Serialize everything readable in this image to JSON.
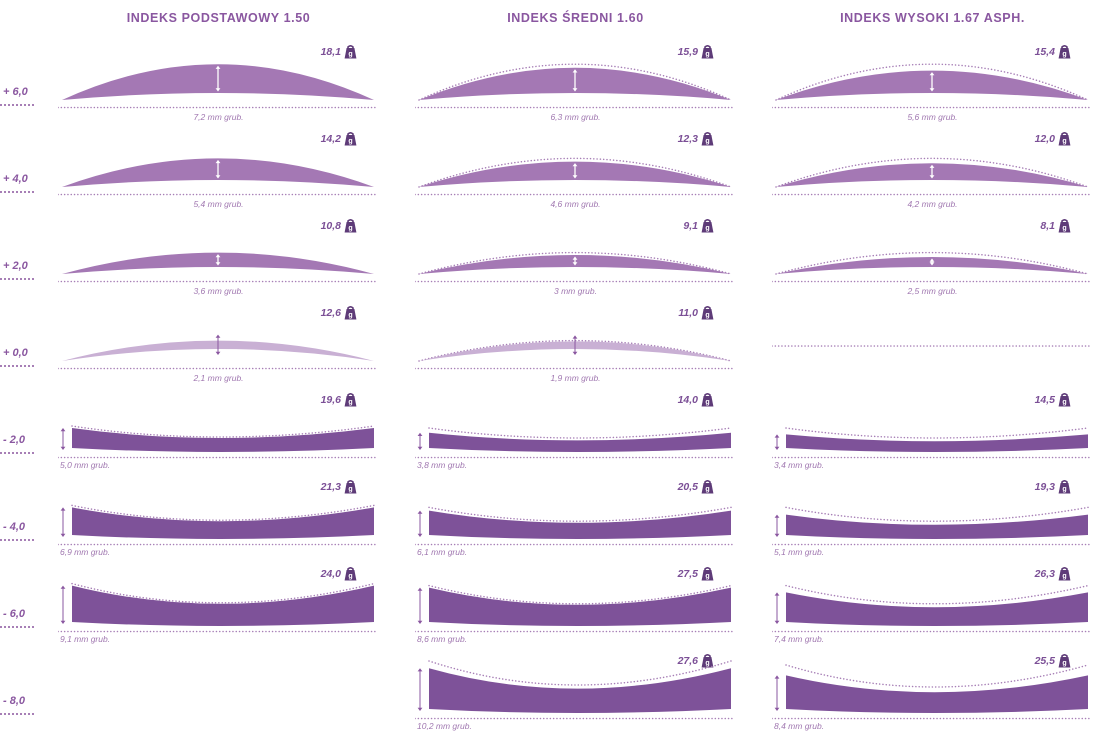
{
  "columns": [
    {
      "title": "INDEKS PODSTAWOWY 1.50"
    },
    {
      "title": "INDEKS ŚREDNI 1.60"
    },
    {
      "title": "INDEKS WYSOKI 1.67 ASPH."
    }
  ],
  "weight_unit": "g",
  "rows": [
    {
      "power": "+ 6,0",
      "cells": [
        {
          "kind": "plus",
          "weight": "18,1",
          "thickness": "7,2 mm grub.",
          "mm": 7.2
        },
        {
          "kind": "plus",
          "weight": "15,9",
          "thickness": "6,3 mm grub.",
          "mm": 6.3,
          "ref_mm": 7.2
        },
        {
          "kind": "plus",
          "weight": "15,4",
          "thickness": "5,6 mm grub.",
          "mm": 5.6,
          "ref_mm": 7.2
        }
      ]
    },
    {
      "power": "+ 4,0",
      "cells": [
        {
          "kind": "plus",
          "weight": "14,2",
          "thickness": "5,4 mm grub.",
          "mm": 5.4
        },
        {
          "kind": "plus",
          "weight": "12,3",
          "thickness": "4,6 mm grub.",
          "mm": 4.6,
          "ref_mm": 5.4
        },
        {
          "kind": "plus",
          "weight": "12,0",
          "thickness": "4,2 mm grub.",
          "mm": 4.2,
          "ref_mm": 5.4
        }
      ]
    },
    {
      "power": "+ 2,0",
      "cells": [
        {
          "kind": "plus",
          "weight": "10,8",
          "thickness": "3,6 mm grub.",
          "mm": 3.6
        },
        {
          "kind": "plus",
          "weight": "9,1",
          "thickness": "3 mm grub.",
          "mm": 3.0,
          "ref_mm": 3.6
        },
        {
          "kind": "plus",
          "weight": "8,1",
          "thickness": "2,5 mm grub.",
          "mm": 2.5,
          "ref_mm": 3.6
        }
      ]
    },
    {
      "power": "+ 0,0",
      "cells": [
        {
          "kind": "plano",
          "weight": "12,6",
          "thickness": "2,1 mm grub.",
          "mm": 2.1
        },
        {
          "kind": "plano",
          "weight": "11,0",
          "thickness": "1,9 mm grub.",
          "mm": 1.9,
          "ref_mm": 2.1
        },
        {
          "kind": "dashline"
        }
      ]
    },
    {
      "power": "- 2,0",
      "cells": [
        {
          "kind": "minus",
          "weight": "19,6",
          "thickness": "5,0 mm grub.",
          "mm": 5.0,
          "ref_mm": 5.5
        },
        {
          "kind": "minus",
          "weight": "14,0",
          "thickness": "3,8 mm grub.",
          "mm": 3.8,
          "ref_mm": 5.0
        },
        {
          "kind": "minus",
          "weight": "14,5",
          "thickness": "3,4 mm grub.",
          "mm": 3.4,
          "ref_mm": 5.0
        }
      ]
    },
    {
      "power": "- 4,0",
      "cells": [
        {
          "kind": "minus",
          "weight": "21,3",
          "thickness": "6,9 mm grub.",
          "mm": 6.9,
          "ref_mm": 7.4
        },
        {
          "kind": "minus",
          "weight": "20,5",
          "thickness": "6,1 mm grub.",
          "mm": 6.1,
          "ref_mm": 6.9
        },
        {
          "kind": "minus",
          "weight": "19,3",
          "thickness": "5,1 mm grub.",
          "mm": 5.1,
          "ref_mm": 6.9
        }
      ]
    },
    {
      "power": "- 6,0",
      "cells": [
        {
          "kind": "minus",
          "weight": "24,0",
          "thickness": "9,1 mm grub.",
          "mm": 9.1,
          "ref_mm": 9.6
        },
        {
          "kind": "minus",
          "weight": "27,5",
          "thickness": "8,6 mm grub.",
          "mm": 8.6,
          "ref_mm": 9.1
        },
        {
          "kind": "minus",
          "weight": "26,3",
          "thickness": "7,4 mm grub.",
          "mm": 7.4,
          "ref_mm": 9.1
        }
      ]
    },
    {
      "power": "- 8,0",
      "cells": [
        {
          "kind": "none"
        },
        {
          "kind": "minus",
          "weight": "27,6",
          "thickness": "10,2 mm grub.",
          "mm": 10.2,
          "ref_mm": 12.0
        },
        {
          "kind": "minus",
          "weight": "25,5",
          "thickness": "8,4 mm grub.",
          "mm": 8.4,
          "ref_mm": 11.0
        }
      ]
    }
  ],
  "colors": {
    "plus_fill": "#a478b4",
    "minus_fill": "#7e5299",
    "faded_fill": "#c9b0d4",
    "dotted": "#a77fb6",
    "accent": "#8a57a0",
    "icon": "#5e3b78",
    "title": "#8a57a0"
  }
}
